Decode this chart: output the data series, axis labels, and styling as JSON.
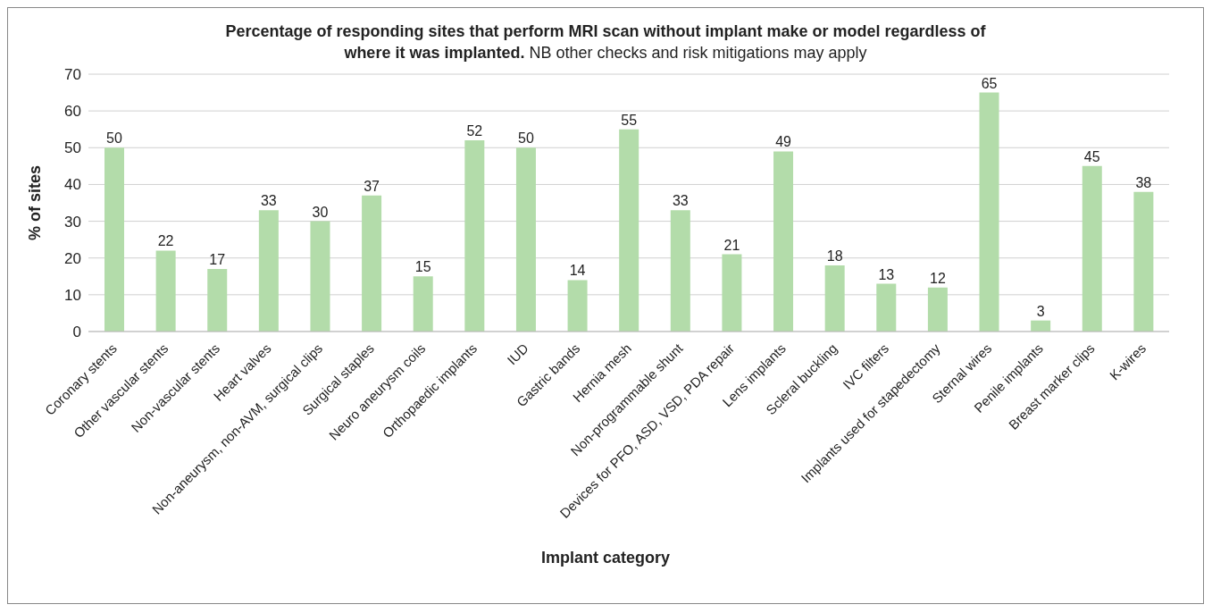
{
  "chart_data": {
    "type": "bar",
    "title": "Percentage of responding sites that perform MRI scan without implant make or model regardless of where it was implanted.",
    "subtitle": "NB other checks and risk mitigations may apply",
    "xlabel": "Implant category",
    "ylabel": "% of sites",
    "categories": [
      "Coronary stents",
      "Other vascular stents",
      "Non-vascular stents",
      "Heart valves",
      "Non-aneurysm, non-AVM, surgical clips",
      "Surgical staples",
      "Neuro aneurysm coils",
      "Orthopaedic implants",
      "IUD",
      "Gastric bands",
      "Hernia mesh",
      "Non-programmable shunt",
      "Devices for PFO, ASD, VSD, PDA repair",
      "Lens implants",
      "Scleral buckling",
      "IVC filters",
      "Implants used for stapedectomy",
      "Sternal wires",
      "Penile implants",
      "Breast marker clips",
      "K-wires"
    ],
    "values": [
      50,
      22,
      17,
      33,
      30,
      37,
      15,
      52,
      50,
      14,
      55,
      33,
      21,
      49,
      18,
      13,
      12,
      65,
      3,
      45,
      38
    ],
    "color": "#b3dcaa",
    "ylim": [
      0,
      70
    ],
    "yticks": [
      0,
      10,
      20,
      30,
      40,
      50,
      60,
      70
    ],
    "grid": "y",
    "data_labels": true
  }
}
